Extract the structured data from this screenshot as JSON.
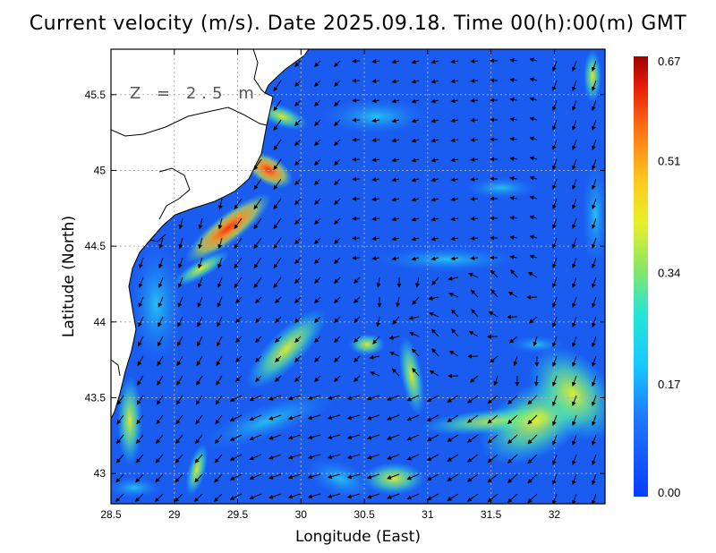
{
  "title": "Current velocity (m/s). Date 2025.09.18. Time 00(h):00(m) GMT",
  "depth_label": "Z = 2.5 m",
  "x_axis": {
    "label": "Longitude (East)",
    "range": [
      28.5,
      32.4
    ],
    "ticks": [
      "28.5",
      "29",
      "29.5",
      "30",
      "30.5",
      "31",
      "31.5",
      "32"
    ],
    "tick_values": [
      28.5,
      29,
      29.5,
      30,
      30.5,
      31,
      31.5,
      32
    ]
  },
  "y_axis": {
    "label": "Latitude (North)",
    "range": [
      42.8,
      45.8
    ],
    "ticks": [
      "43",
      "43.5",
      "44",
      "44.5",
      "45",
      "45.5"
    ],
    "tick_values": [
      43,
      43.5,
      44,
      44.5,
      45,
      45.5
    ]
  },
  "colorbar": {
    "ticks": [
      "0.67",
      "0.51",
      "0.34",
      "0.17",
      "0.00"
    ],
    "tick_values": [
      0.67,
      0.51,
      0.34,
      0.17,
      0.0
    ],
    "min": 0.0,
    "max": 0.67
  },
  "colors": {
    "land": "#ffffff",
    "sea_low": "#1a5cf0",
    "grid": "#b0b0b0",
    "arrow": "#000000"
  }
}
